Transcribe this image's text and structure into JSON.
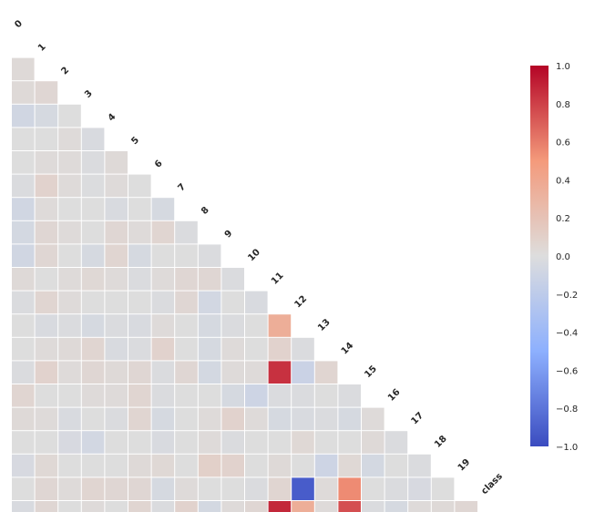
{
  "chart_data": {
    "type": "heatmap",
    "title": "",
    "variables": [
      "0",
      "1",
      "2",
      "3",
      "4",
      "5",
      "6",
      "7",
      "8",
      "9",
      "10",
      "11",
      "12",
      "13",
      "14",
      "15",
      "16",
      "17",
      "18",
      "19",
      "class"
    ],
    "mask": "upper-triangle",
    "colormap": "coolwarm",
    "vmin": -1.0,
    "vmax": 1.0,
    "colorbar_ticks": [
      "1.0",
      "0.8",
      "0.6",
      "0.4",
      "0.2",
      "0.0",
      "−0.2",
      "−0.4",
      "−0.6",
      "−0.8",
      "−1.0"
    ],
    "colorbar_position": "right",
    "rows": [
      [],
      [
        0.03
      ],
      [
        0.03,
        0.05
      ],
      [
        -0.08,
        -0.05,
        0.0
      ],
      [
        0.0,
        0.0,
        0.02,
        -0.03
      ],
      [
        0.0,
        0.02,
        0.02,
        -0.02,
        0.03
      ],
      [
        -0.02,
        0.08,
        0.02,
        -0.01,
        0.02,
        0.0
      ],
      [
        -0.08,
        0.02,
        0.0,
        0.0,
        -0.03,
        0.0,
        -0.05
      ],
      [
        -0.06,
        0.05,
        0.02,
        0.0,
        0.05,
        0.02,
        0.06,
        -0.02
      ],
      [
        -0.08,
        0.05,
        0.0,
        -0.05,
        0.06,
        -0.05,
        0.0,
        0.0,
        -0.02
      ],
      [
        0.03,
        0.0,
        0.02,
        0.04,
        0.02,
        -0.02,
        0.02,
        0.05,
        0.05,
        -0.02
      ],
      [
        -0.02,
        0.06,
        0.02,
        0.0,
        0.0,
        0.0,
        -0.02,
        0.05,
        -0.07,
        0.0,
        -0.03
      ],
      [
        0.0,
        -0.03,
        -0.02,
        -0.05,
        -0.02,
        -0.03,
        0.02,
        0.0,
        -0.05,
        -0.02,
        0.0,
        0.35
      ],
      [
        0.0,
        0.02,
        0.03,
        0.06,
        -0.03,
        -0.02,
        0.08,
        0.0,
        -0.05,
        0.02,
        0.0,
        0.08,
        -0.02
      ],
      [
        -0.02,
        0.08,
        0.02,
        0.05,
        0.03,
        0.05,
        -0.02,
        0.05,
        -0.06,
        0.02,
        0.02,
        0.85,
        -0.12,
        0.06
      ],
      [
        0.06,
        0.0,
        0.0,
        0.02,
        0.02,
        0.06,
        -0.02,
        0.0,
        0.0,
        -0.05,
        -0.1,
        -0.02,
        -0.02,
        0.0,
        -0.02
      ],
      [
        0.03,
        0.02,
        -0.03,
        0.0,
        -0.02,
        0.06,
        -0.05,
        0.0,
        0.02,
        0.08,
        0.02,
        -0.05,
        -0.03,
        -0.02,
        -0.05,
        0.02
      ],
      [
        0.0,
        0.0,
        -0.04,
        -0.07,
        0.0,
        0.0,
        -0.03,
        0.0,
        0.02,
        -0.02,
        0.0,
        0.0,
        0.04,
        0.0,
        0.0,
        0.03,
        -0.02
      ],
      [
        -0.04,
        0.04,
        0.0,
        0.0,
        0.0,
        0.03,
        0.04,
        0.0,
        0.1,
        0.08,
        0.0,
        0.03,
        0.0,
        -0.1,
        0.04,
        -0.06,
        0.0,
        -0.02
      ],
      [
        0.0,
        0.05,
        0.02,
        0.06,
        0.05,
        0.05,
        -0.05,
        0.02,
        0.0,
        0.0,
        -0.02,
        0.06,
        -0.92,
        0.02,
        0.55,
        0.0,
        -0.02,
        -0.04,
        0.0
      ],
      [
        -0.03,
        0.05,
        0.0,
        0.02,
        0.0,
        0.06,
        -0.02,
        0.08,
        -0.06,
        0.02,
        0.05,
        0.88,
        0.35,
        0.02,
        0.75,
        -0.02,
        -0.05,
        0.02,
        0.03,
        0.05
      ]
    ]
  }
}
